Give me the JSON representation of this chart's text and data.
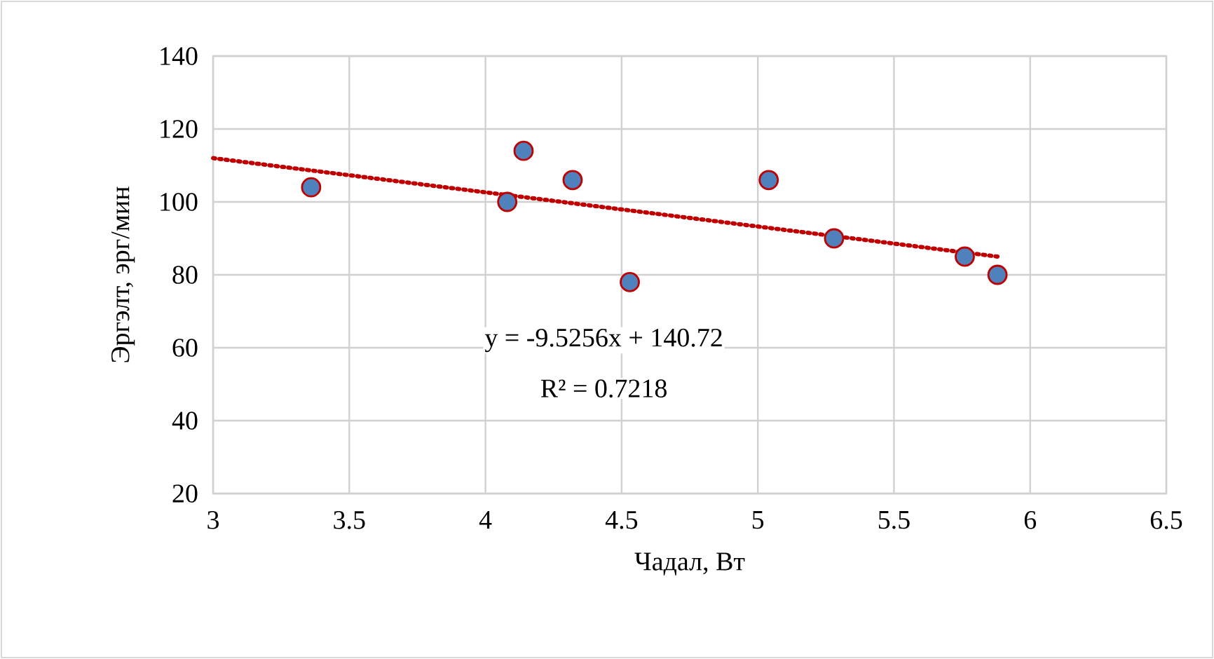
{
  "chart_data": {
    "type": "scatter",
    "xlabel": "Чадал, Вт",
    "ylabel": "Эргэлт, эрг/мин",
    "xlim": [
      3,
      6.5
    ],
    "xticks": [
      3,
      3.5,
      4,
      4.5,
      5,
      5.5,
      6,
      6.5
    ],
    "ylim": [
      20,
      140
    ],
    "yticks": [
      20,
      40,
      60,
      80,
      100,
      120,
      140
    ],
    "grid": true,
    "series": [
      {
        "type": "line",
        "line_style": "dotted",
        "marker": "none",
        "color": "#c00000",
        "x": [
          3,
          5.88
        ],
        "values": [
          112,
          85
        ]
      },
      {
        "marker": "circle",
        "color": "#4f81bd",
        "x": [
          3.36,
          4.08,
          4.14,
          4.32,
          4.53,
          5.04,
          5.28,
          5.76,
          5.88
        ],
        "values": [
          104,
          100,
          114,
          106,
          78,
          106,
          90,
          85,
          80
        ]
      }
    ],
    "annotations": [
      "y = -9.5256x + 140.72",
      "R² = 0.7218"
    ]
  }
}
